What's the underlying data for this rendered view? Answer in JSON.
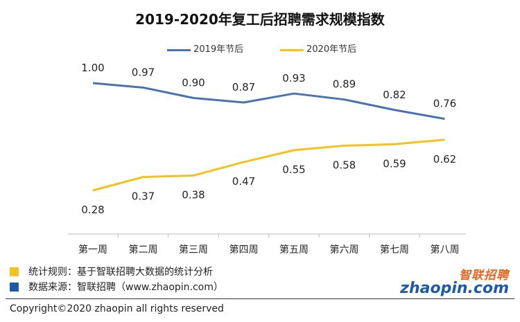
{
  "chart_data": {
    "type": "line",
    "title": "2019-2020年复工后招聘需求规模指数",
    "categories": [
      "第一周",
      "第二周",
      "第三周",
      "第四周",
      "第五周",
      "第六周",
      "第七周",
      "第八周"
    ],
    "series": [
      {
        "name": "2019年节后",
        "color": "#4a72b2",
        "values": [
          1.0,
          0.97,
          0.9,
          0.87,
          0.93,
          0.89,
          0.82,
          0.76
        ],
        "labels": [
          "1.00",
          "0.97",
          "0.90",
          "0.87",
          "0.93",
          "0.89",
          "0.82",
          "0.76"
        ]
      },
      {
        "name": "2020年节后",
        "color": "#f5c11c",
        "values": [
          0.28,
          0.37,
          0.38,
          0.47,
          0.55,
          0.58,
          0.59,
          0.62
        ],
        "labels": [
          "0.28",
          "0.37",
          "0.38",
          "0.47",
          "0.55",
          "0.58",
          "0.59",
          "0.62"
        ]
      }
    ],
    "legend": "top-center",
    "grid": false
  },
  "notes": {
    "rule": "统计规则：基于智联招聘大数据的统计分析",
    "rule_color": "#f5c11c",
    "source": "数据来源：智联招聘（www.zhaopin.com）",
    "source_color": "#1c5aa6"
  },
  "logo": {
    "cn": "智联招聘",
    "en": "zhaopin.com"
  },
  "copyright": "Copyright©2020 zhaopin all rights reserved"
}
